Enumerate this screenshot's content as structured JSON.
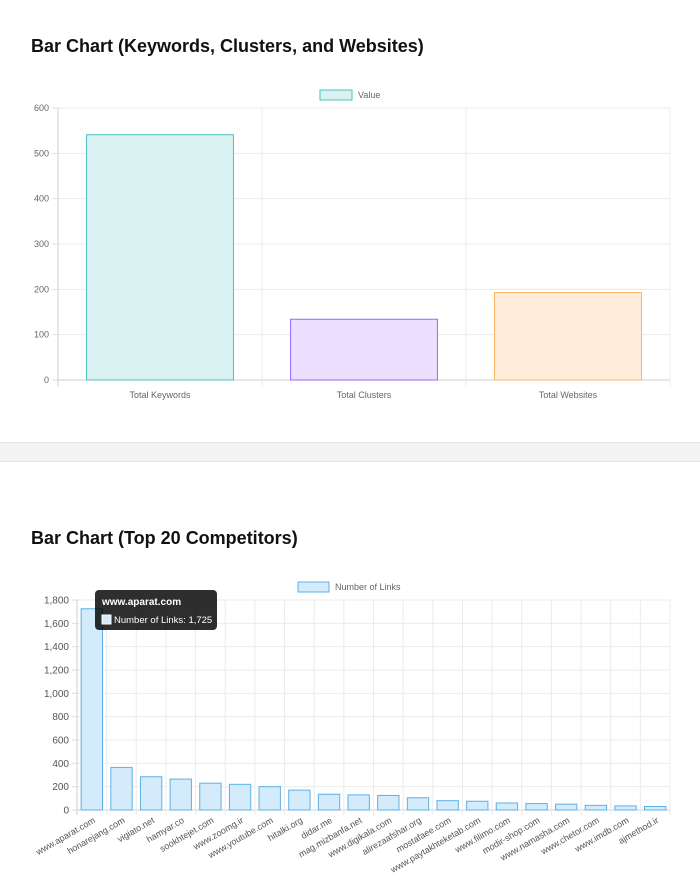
{
  "charts": [
    {
      "title": "Bar Chart (Keywords, Clusters, and Websites)",
      "chart_data": {
        "type": "bar",
        "categories": [
          "Total Keywords",
          "Total Clusters",
          "Total Websites"
        ],
        "series": [
          {
            "name": "Value",
            "values": [
              541,
              134,
              193
            ]
          }
        ],
        "bar_fill_colors": [
          "#dbf2f2",
          "#ebe0ff",
          "#ffecd9"
        ],
        "bar_border_colors": [
          "#4bc0c0",
          "#9966ff",
          "#ffb366"
        ],
        "legend_swatch": {
          "fill": "#dbf2f2",
          "border": "#4bc0c0"
        },
        "ylim": [
          0,
          600
        ],
        "yticks": [
          0,
          100,
          200,
          300,
          400,
          500,
          600
        ],
        "ytick_labels": [
          "0",
          "100",
          "200",
          "300",
          "400",
          "500",
          "600"
        ],
        "xlabel": "",
        "ylabel": "",
        "grid": true,
        "legend_position": "top"
      }
    },
    {
      "title": "Bar Chart (Top 20 Competitors)",
      "chart_data": {
        "type": "bar",
        "categories": [
          "www.aparat.com",
          "honarejang.com",
          "vigiato.net",
          "hamyar.co",
          "sookhtejet.com",
          "www.zoomg.ir",
          "www.youtube.com",
          "hitalki.org",
          "didar.me",
          "mag.mizbanfa.net",
          "www.digikala.com",
          "alirezaafshar.org",
          "mostafaee.com",
          "www.paytakhteketab.com",
          "www.filimo.com",
          "modir-shop.com",
          "www.namasha.com",
          "www.chetor.com",
          "www.imdb.com",
          "ajmethod.ir"
        ],
        "series": [
          {
            "name": "Number of Links",
            "values": [
              1725,
              365,
              285,
              265,
              230,
              220,
              200,
              170,
              135,
              130,
              125,
              105,
              80,
              75,
              60,
              55,
              50,
              40,
              35,
              30
            ]
          }
        ],
        "bar_fill": "#d3ebfa",
        "bar_border": "#5fb0e6",
        "ylim": [
          0,
          1800
        ],
        "yticks": [
          0,
          200,
          400,
          600,
          800,
          1000,
          1200,
          1400,
          1600,
          1800
        ],
        "ytick_labels": [
          "0",
          "200",
          "400",
          "600",
          "800",
          "1,000",
          "1,200",
          "1,400",
          "1,600",
          "1,800"
        ],
        "xlabel": "",
        "ylabel": "",
        "grid": true,
        "legend_position": "top",
        "tooltip": {
          "title": "www.aparat.com",
          "label": "Number of Links: 1,725",
          "category_index": 0
        }
      }
    }
  ]
}
